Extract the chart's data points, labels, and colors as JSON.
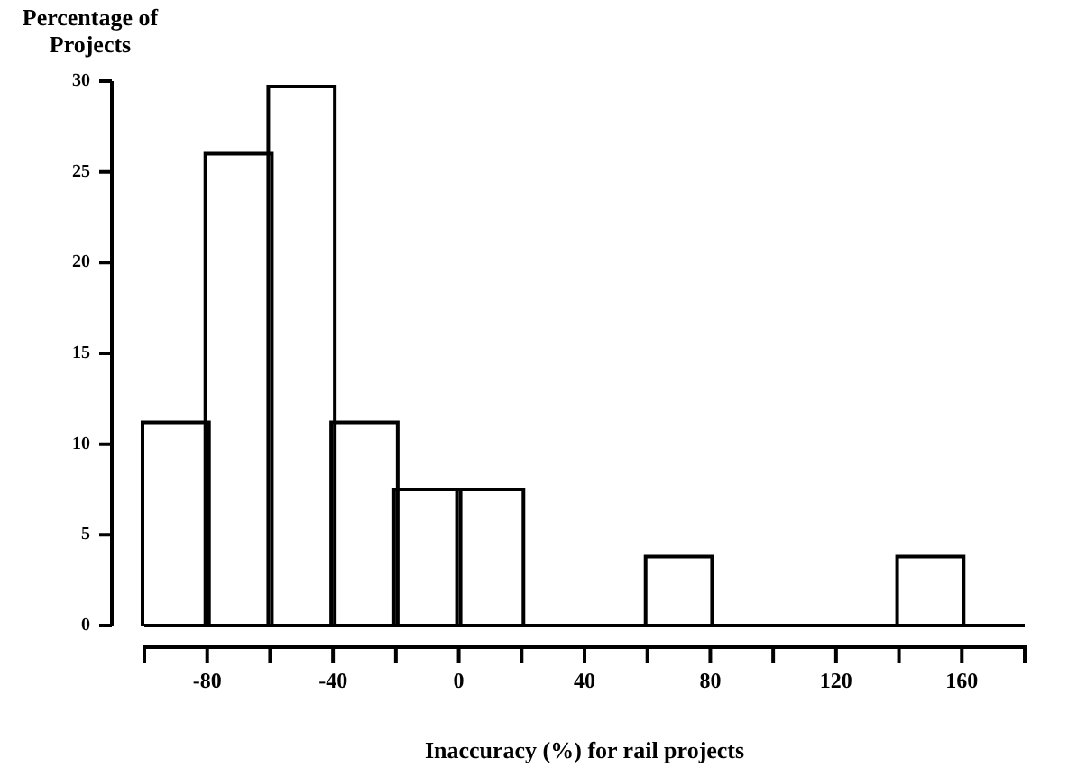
{
  "chart_data": {
    "type": "histogram",
    "xlabel": "Inaccuracy (%) for rail projects",
    "ylabel": "Percentage of Projects",
    "bins": [
      -100,
      -80,
      -60,
      -40,
      -20,
      0,
      20,
      40,
      60,
      80,
      100,
      120,
      140,
      160,
      180
    ],
    "values": [
      11.1,
      25.9,
      29.6,
      11.1,
      7.4,
      7.4,
      0,
      0,
      3.7,
      0,
      0,
      0,
      3.7,
      0
    ],
    "color": "#ffffff",
    "xlim": [
      -100,
      180
    ],
    "xticks": [
      {
        "value": -100,
        "label": null
      },
      -80,
      {
        "value": -60,
        "label": null
      },
      -40,
      {
        "value": -20,
        "label": null
      },
      0,
      {
        "value": 20,
        "label": null
      },
      40,
      {
        "value": 60,
        "label": null
      },
      80,
      {
        "value": 100,
        "label": null
      },
      120,
      {
        "value": 140,
        "label": null
      },
      160,
      {
        "value": 180,
        "label": null
      }
    ],
    "ylim": [
      0,
      30
    ],
    "yticks": [
      0,
      5,
      10,
      15,
      20,
      25,
      30
    ]
  }
}
